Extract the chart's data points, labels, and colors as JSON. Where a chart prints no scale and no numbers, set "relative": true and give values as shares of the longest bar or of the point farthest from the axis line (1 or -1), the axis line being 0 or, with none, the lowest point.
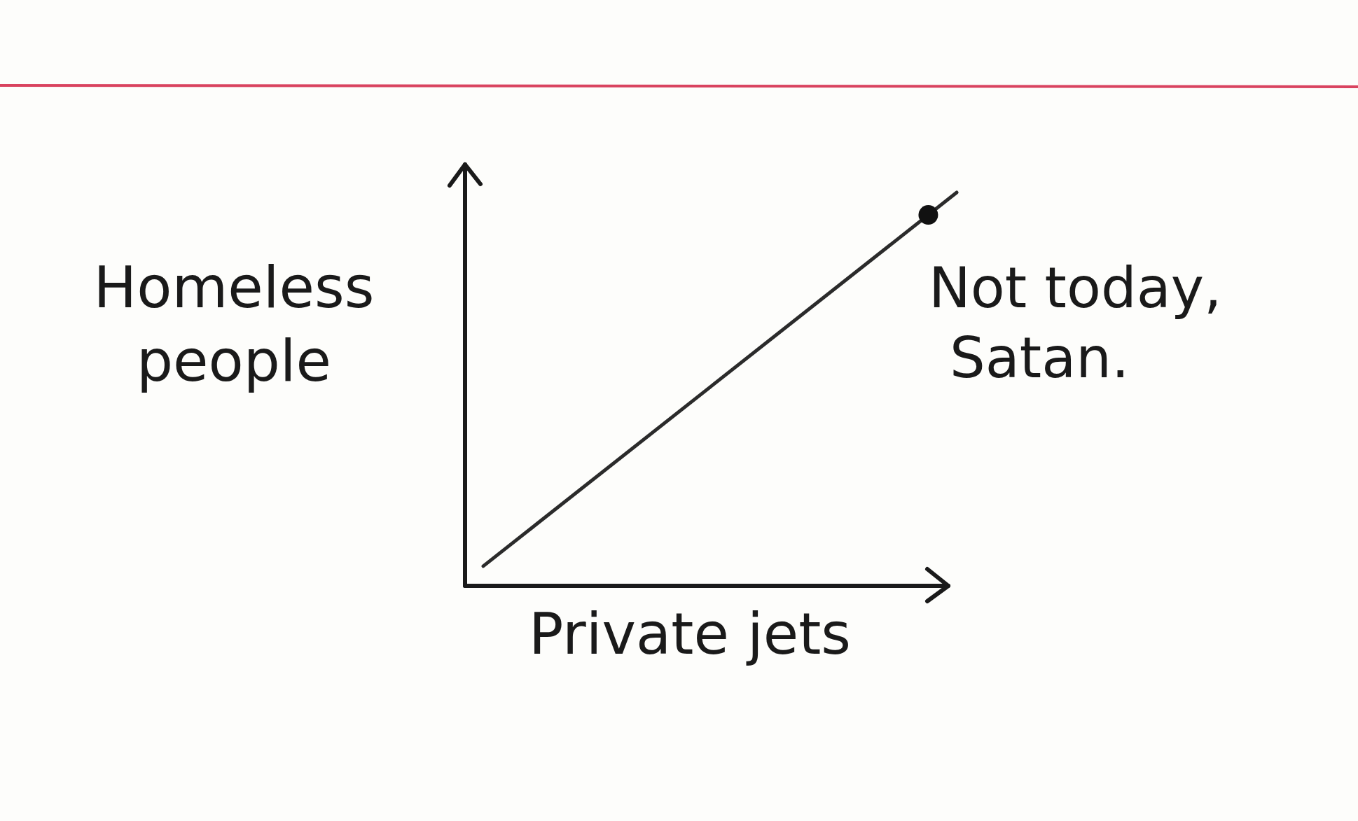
{
  "chart_data": {
    "type": "line",
    "relative": true,
    "xlabel": "Private jets",
    "ylabel": "Homeless people",
    "annotations": [
      "Not today, Satan."
    ],
    "categories": [
      null,
      null
    ],
    "series": [
      {
        "color": "#2b2b2b",
        "values": [
          0.05,
          1
        ]
      }
    ]
  }
}
